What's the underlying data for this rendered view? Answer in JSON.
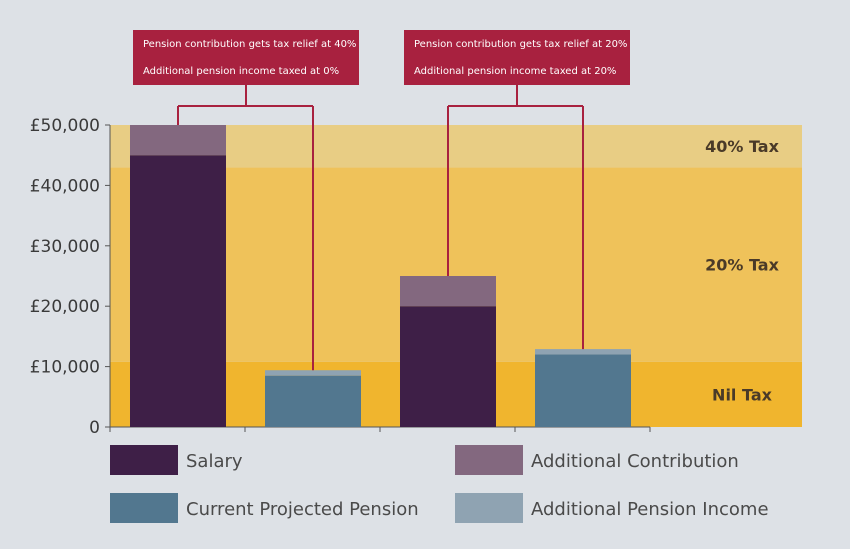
{
  "chart_data": {
    "type": "bar",
    "title": "",
    "xlabel": "",
    "ylabel": "",
    "ylim": [
      0,
      50000
    ],
    "y_ticks": [
      {
        "value": 0,
        "label": "0"
      },
      {
        "value": 10000,
        "label": "£10,000"
      },
      {
        "value": 20000,
        "label": "£20,000"
      },
      {
        "value": 30000,
        "label": "£30,000"
      },
      {
        "value": 40000,
        "label": "£40,000"
      },
      {
        "value": 50000,
        "label": "£50,000"
      }
    ],
    "tax_bands": [
      {
        "name": "Nil Tax",
        "from": 0,
        "to": 10800,
        "color": "#f0b52e"
      },
      {
        "name": "20% Tax",
        "from": 10800,
        "to": 43000,
        "color": "#efc25a"
      },
      {
        "name": "40% Tax",
        "from": 43000,
        "to": 50000,
        "color": "#e8cd84"
      }
    ],
    "series": [
      {
        "name": "Salary",
        "color": "#3e1f47"
      },
      {
        "name": "Additional Contribution",
        "color": "#83687f"
      },
      {
        "name": "Current Projected Pension",
        "color": "#52778f"
      },
      {
        "name": "Additional Pension Income",
        "color": "#8fa3b2"
      }
    ],
    "bars": [
      {
        "group": 0,
        "segments": [
          {
            "series": "Salary",
            "value": 45000
          },
          {
            "series": "Additional Contribution",
            "value": 5000
          }
        ]
      },
      {
        "group": 0,
        "segments": [
          {
            "series": "Current Projected Pension",
            "value": 8500
          },
          {
            "series": "Additional Pension Income",
            "value": 900
          }
        ]
      },
      {
        "group": 1,
        "segments": [
          {
            "series": "Salary",
            "value": 20000
          },
          {
            "series": "Additional Contribution",
            "value": 5000
          }
        ]
      },
      {
        "group": 1,
        "segments": [
          {
            "series": "Current Projected Pension",
            "value": 12000
          },
          {
            "series": "Additional Pension Income",
            "value": 900
          }
        ]
      }
    ],
    "annotations": [
      {
        "group": 0,
        "lines": [
          "Pension contribution gets tax relief at 40%",
          "Additional pension income taxed at 0%"
        ]
      },
      {
        "group": 1,
        "lines": [
          "Pension contribution gets tax relief at 20%",
          "Additional pension income taxed at 20%"
        ]
      }
    ],
    "legend": {
      "placement": "bottom",
      "items": [
        "Salary",
        "Additional Contribution",
        "Current Projected Pension",
        "Additional Pension Income"
      ]
    },
    "grid": false,
    "colors": {
      "background": "#dde1e6",
      "callout": "#a8213f",
      "axis": "#555555"
    }
  }
}
